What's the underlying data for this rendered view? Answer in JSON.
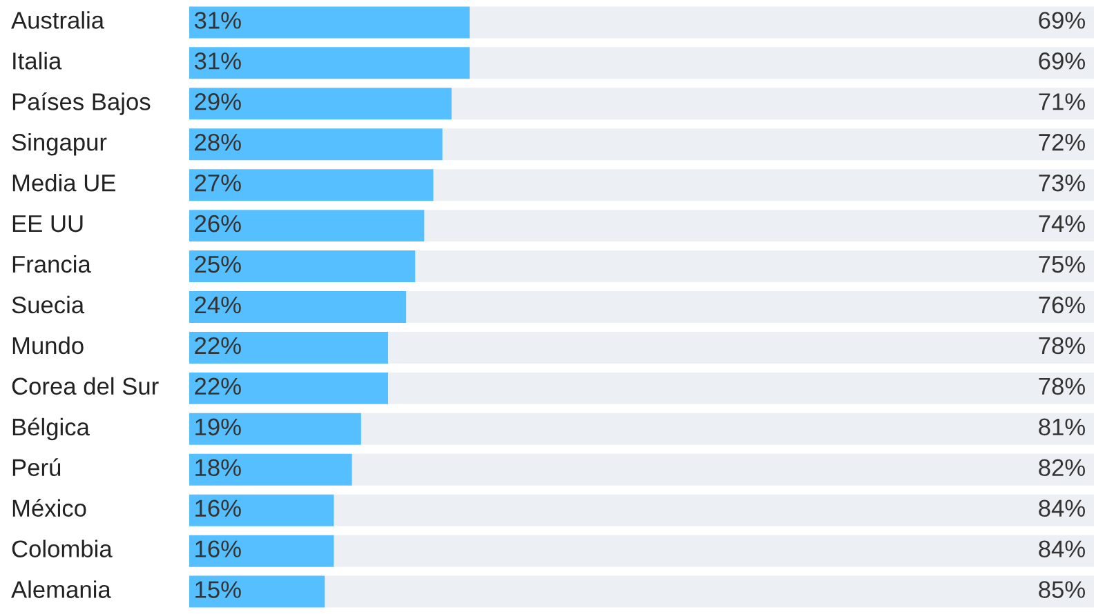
{
  "chart_data": {
    "type": "bar",
    "orientation": "horizontal",
    "stacked": true,
    "xlim": [
      0,
      100
    ],
    "categories": [
      "Australia",
      "Italia",
      "Países Bajos",
      "Singapur",
      "Media UE",
      "EE UU",
      "Francia",
      "Suecia",
      "Mundo",
      "Corea del Sur",
      "Bélgica",
      "Perú",
      "México",
      "Colombia",
      "Alemania"
    ],
    "series": [
      {
        "color": "#55bfff",
        "values": [
          31,
          31,
          29,
          28,
          27,
          26,
          25,
          24,
          22,
          22,
          19,
          18,
          16,
          16,
          15
        ],
        "value_labels": [
          "31%",
          "31%",
          "29%",
          "28%",
          "27%",
          "26%",
          "25%",
          "24%",
          "22%",
          "22%",
          "19%",
          "18%",
          "16%",
          "16%",
          "15%"
        ]
      },
      {
        "color": "#eceff3",
        "values": [
          69,
          69,
          71,
          72,
          73,
          74,
          75,
          76,
          78,
          78,
          81,
          82,
          84,
          84,
          85
        ],
        "value_labels": [
          "69%",
          "69%",
          "71%",
          "72%",
          "73%",
          "74%",
          "75%",
          "76%",
          "78%",
          "78%",
          "81%",
          "82%",
          "84%",
          "84%",
          "85%"
        ]
      }
    ]
  }
}
